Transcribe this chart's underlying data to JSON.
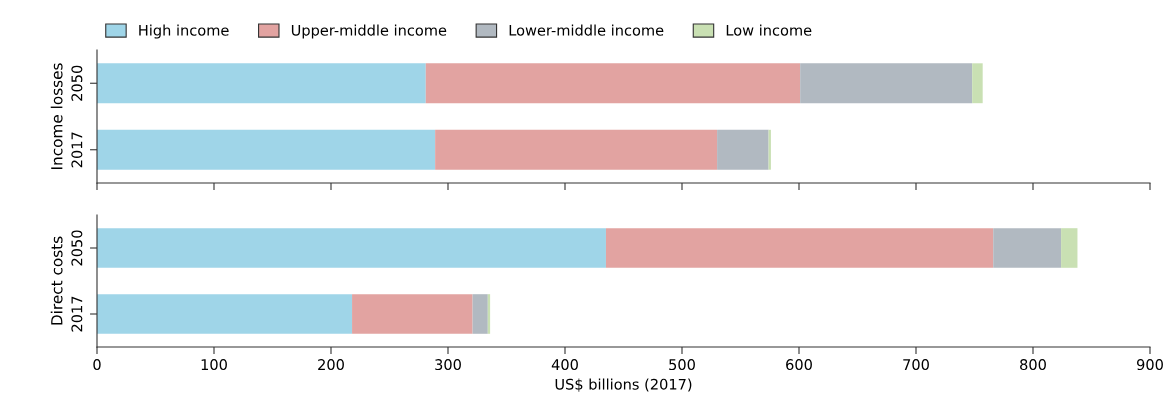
{
  "chart_data": [
    {
      "type": "bar",
      "orientation": "horizontal",
      "stacked": true,
      "ylabel": "Income losses",
      "categories": [
        "2050",
        "2017"
      ],
      "xlim": [
        0,
        900
      ],
      "xticks": [
        0,
        100,
        200,
        300,
        400,
        500,
        600,
        700,
        800,
        900
      ],
      "tick_labels": "y",
      "legend": "top",
      "grid": false,
      "series": [
        {
          "name": "High income",
          "color": "#9fd5e8",
          "values": [
            281,
            289
          ]
        },
        {
          "name": "Upper-middle income",
          "color": "#e2a3a1",
          "values": [
            320,
            241
          ]
        },
        {
          "name": "Lower-middle income",
          "color": "#b1b9c1",
          "values": [
            147,
            44
          ]
        },
        {
          "name": "Low income",
          "color": "#c9e0b3",
          "values": [
            9,
            2
          ]
        }
      ]
    },
    {
      "type": "bar",
      "orientation": "horizontal",
      "stacked": true,
      "ylabel": "Direct costs",
      "xlabel": "US$ billions (2017)",
      "categories": [
        "2050",
        "2017"
      ],
      "xlim": [
        0,
        900
      ],
      "xticks": [
        0,
        100,
        200,
        300,
        400,
        500,
        600,
        700,
        800,
        900
      ],
      "grid": false,
      "series": [
        {
          "color": "#9fd5e8",
          "values": [
            435,
            218
          ]
        },
        {
          "color": "#e2a3a1",
          "values": [
            331,
            103
          ]
        },
        {
          "color": "#b1b9c1",
          "values": [
            58,
            13
          ]
        },
        {
          "color": "#c9e0b3",
          "values": [
            14,
            2
          ]
        }
      ]
    }
  ]
}
